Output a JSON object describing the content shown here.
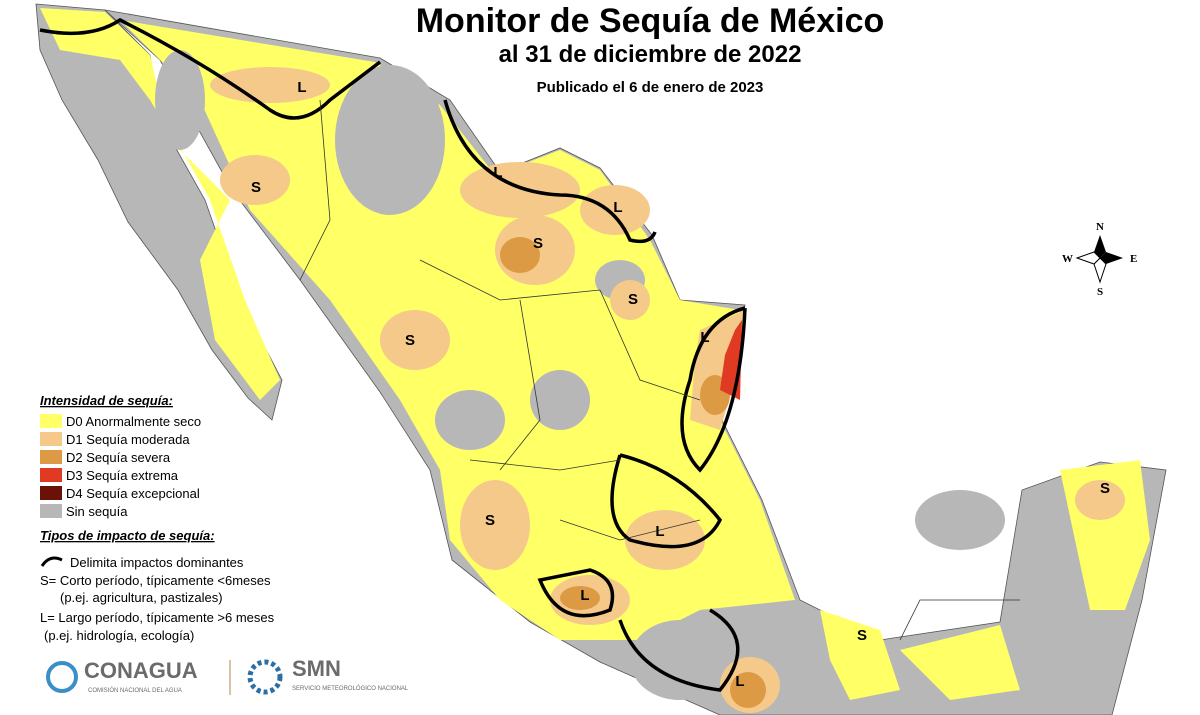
{
  "header": {
    "title": "Monitor de Sequía de México",
    "subtitle": "al 31 de diciembre de 2022",
    "published": "Publicado el 6 de enero de 2023"
  },
  "compass": {
    "north": "N",
    "south": "S",
    "east": "E",
    "west": "W"
  },
  "legend": {
    "intensity_title": "Intensidad de sequía:",
    "items": [
      {
        "label": "D0 Anormalmente seco",
        "color": "#ffff66"
      },
      {
        "label": "D1 Sequía moderada",
        "color": "#f5c98a"
      },
      {
        "label": "D2 Sequía severa",
        "color": "#dd9a45"
      },
      {
        "label": "D3 Sequía extrema",
        "color": "#e03a22"
      },
      {
        "label": "D4 Sequía excepcional",
        "color": "#6b1208"
      },
      {
        "label": "Sin sequía",
        "color": "#b7b7b7"
      }
    ],
    "impact_title": "Tipos de impacto de sequía:",
    "impact_lines": [
      "Delimita impactos dominantes",
      "S= Corto período, típicamente <6meses",
      "(p.ej. agricultura, pastizales)",
      "L= Largo período, típicamente >6 meses",
      "(p.ej. hidrología, ecología)"
    ]
  },
  "logos": {
    "conagua": "CONAGUA",
    "conagua_sub": "COMISIÓN NACIONAL DEL AGUA",
    "smn": "SMN",
    "smn_sub": "SERVICIO METEOROLÓGICO NACIONAL"
  },
  "map_labels": [
    "L",
    "S",
    "L",
    "L",
    "S",
    "S",
    "S",
    "L",
    "S",
    "L",
    "L",
    "L",
    "S",
    "S"
  ]
}
